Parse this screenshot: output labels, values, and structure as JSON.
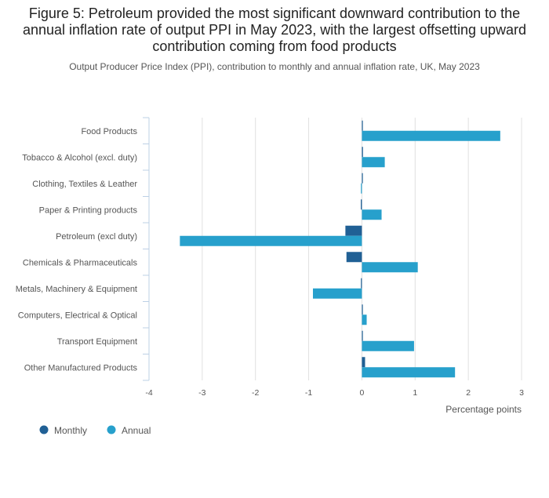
{
  "title": "Figure 5: Petroleum provided the most significant downward contribution to the annual inflation rate of output PPI in May 2023, with the largest offsetting upward contribution coming from food products",
  "subtitle": "Output Producer Price Index (PPI), contribution to monthly and annual inflation rate, UK, May 2023",
  "colors": {
    "monthly": "#206095",
    "annual": "#27a0cc",
    "grid": "#e0e0e0",
    "axis": "#bcd0e5"
  },
  "chart_data": {
    "type": "bar",
    "orientation": "horizontal",
    "title": "Figure 5: Petroleum provided the most significant downward contribution to the annual inflation rate of output PPI in May 2023, with the largest offsetting upward contribution coming from food products",
    "subtitle": "Output Producer Price Index (PPI), contribution to monthly and annual inflation rate, UK, May 2023",
    "categories": [
      "Food Products",
      "Tobacco & Alcohol (excl. duty)",
      "Clothing, Textiles & Leather",
      "Paper & Printing products",
      "Petroleum (excl duty)",
      "Chemicals & Pharmaceuticals",
      "Metals, Machinery & Equipment",
      "Computers, Electrical & Optical",
      "Transport Equipment",
      "Other Manufactured Products"
    ],
    "series": [
      {
        "name": "Monthly",
        "values": [
          0.01,
          0.02,
          0.0,
          -0.02,
          -0.31,
          -0.29,
          -0.01,
          0.0,
          0.0,
          0.06
        ]
      },
      {
        "name": "Annual",
        "values": [
          2.6,
          0.43,
          -0.01,
          0.37,
          -3.42,
          1.05,
          -0.92,
          0.09,
          0.98,
          1.75
        ]
      }
    ],
    "xlim": [
      -4,
      3
    ],
    "xticks": [
      -4,
      -3,
      -2,
      -1,
      0,
      1,
      2,
      3
    ],
    "xtick_labels": [
      "-4",
      "-3",
      "-2",
      "-1",
      "0",
      "1",
      "2",
      "3"
    ],
    "xlabel": "Percentage points",
    "ylabel": "",
    "grid": true,
    "legend_position": "bottom-left"
  }
}
